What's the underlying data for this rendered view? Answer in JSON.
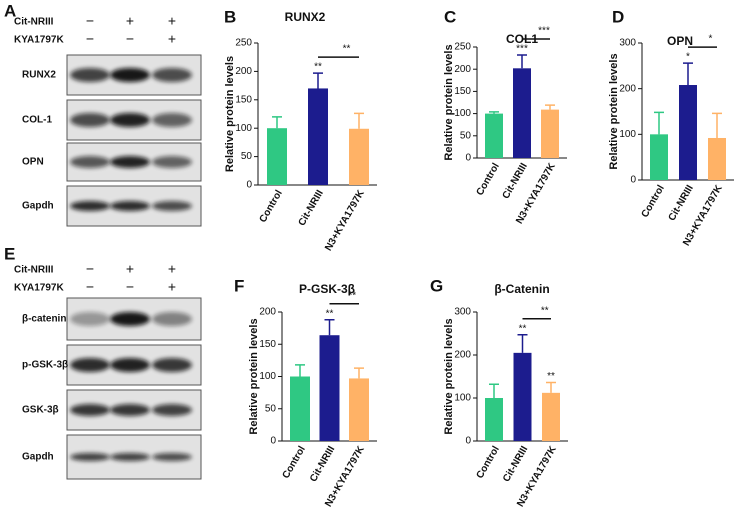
{
  "blots": [
    {
      "panel": "A",
      "conditions": [
        {
          "name": "Cit-NRIII",
          "signs": [
            "−",
            "+",
            "+"
          ]
        },
        {
          "name": "KYA1797K",
          "signs": [
            "−",
            "−",
            "+"
          ]
        }
      ],
      "bands": [
        "RUNX2",
        "COL-1",
        "OPN",
        "Gapdh"
      ]
    },
    {
      "panel": "E",
      "conditions": [
        {
          "name": "Cit-NRIII",
          "signs": [
            "−",
            "+",
            "+"
          ]
        },
        {
          "name": "KYA1797K",
          "signs": [
            "−",
            "−",
            "+"
          ]
        }
      ],
      "bands": [
        "β-catenin",
        "p-GSK-3β",
        "GSK-3β",
        "Gapdh"
      ]
    }
  ],
  "chart_data": [
    {
      "type": "bar",
      "panel": "B",
      "title": "RUNX2",
      "ylabel": "Relative protein levels",
      "categories": [
        "Control",
        "Cit-NRIII",
        "N3+KYA1797K"
      ],
      "values": [
        100,
        170,
        99
      ],
      "errors": [
        20,
        27,
        27
      ],
      "colors": [
        "#2fc883",
        "#1c1c8e",
        "#ffb266"
      ],
      "significance": [
        null,
        "**",
        null
      ],
      "bracket_label": "**",
      "ylim": [
        0,
        250
      ],
      "yticks": [
        0,
        50,
        100,
        150,
        200,
        250
      ]
    },
    {
      "type": "bar",
      "panel": "C",
      "title": "COL1",
      "ylabel": "Relative protein levels",
      "categories": [
        "Control",
        "Cit-NRIII",
        "N3+KYA1797K"
      ],
      "values": [
        100,
        202,
        109
      ],
      "errors": [
        4,
        30,
        10
      ],
      "colors": [
        "#2fc883",
        "#1c1c8e",
        "#ffb266"
      ],
      "significance": [
        null,
        "***",
        null
      ],
      "bracket_label": "***",
      "ylim": [
        0,
        250
      ],
      "yticks": [
        0,
        50,
        100,
        150,
        200,
        250
      ]
    },
    {
      "type": "bar",
      "panel": "D",
      "title": "OPN",
      "ylabel": "Relative protein levels",
      "categories": [
        "Control",
        "Cit-NRIII",
        "N3+KYA1797K"
      ],
      "values": [
        100,
        208,
        92
      ],
      "errors": [
        48,
        48,
        54
      ],
      "colors": [
        "#2fc883",
        "#1c1c8e",
        "#ffb266"
      ],
      "significance": [
        null,
        "*",
        null
      ],
      "bracket_label": "*",
      "ylim": [
        0,
        300
      ],
      "yticks": [
        0,
        100,
        200,
        300
      ]
    },
    {
      "type": "bar",
      "panel": "F",
      "title": "P-GSK-3β",
      "ylabel": "Relative protein levels",
      "categories": [
        "Control",
        "Cit-NRIII",
        "N3+KYA1797K"
      ],
      "values": [
        100,
        164,
        97
      ],
      "errors": [
        18,
        24,
        16
      ],
      "colors": [
        "#2fc883",
        "#1c1c8e",
        "#ffb266"
      ],
      "significance": [
        null,
        "**",
        null
      ],
      "bracket_label": "**",
      "ylim": [
        0,
        200
      ],
      "yticks": [
        0,
        50,
        100,
        150,
        200
      ]
    },
    {
      "type": "bar",
      "panel": "G",
      "title": "β-Catenin",
      "ylabel": "Relative protein levels",
      "categories": [
        "Control",
        "Cit-NRIII",
        "N3+KYA1797K"
      ],
      "values": [
        100,
        205,
        112
      ],
      "errors": [
        32,
        42,
        24
      ],
      "colors": [
        "#2fc883",
        "#1c1c8e",
        "#ffb266"
      ],
      "significance": [
        null,
        "**",
        "**"
      ],
      "bracket_label": "**",
      "ylim": [
        0,
        300
      ],
      "yticks": [
        0,
        100,
        200,
        300
      ]
    }
  ]
}
